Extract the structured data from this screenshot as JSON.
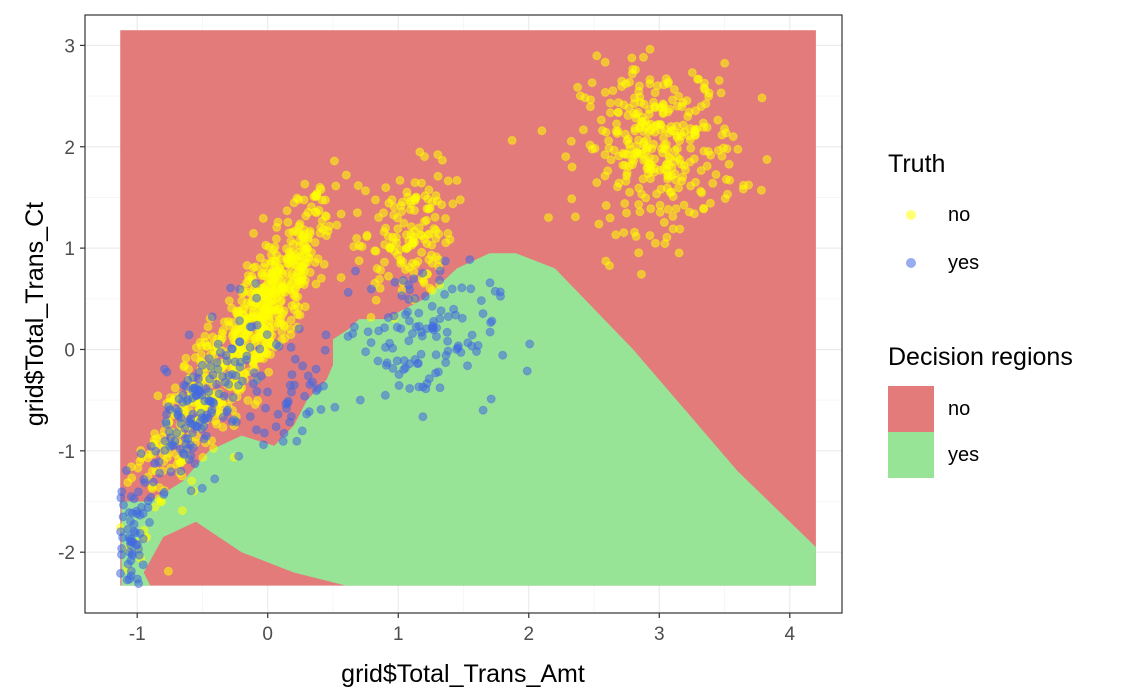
{
  "chart_data": {
    "type": "scatter",
    "xlabel": "grid$Total_Trans_Amt",
    "ylabel": "grid$Total_Trans_Ct",
    "xlim": [
      -1.4,
      4.4
    ],
    "ylim": [
      -2.6,
      3.3
    ],
    "x_ticks": [
      -1,
      0,
      1,
      2,
      3,
      4
    ],
    "y_ticks": [
      -2,
      -1,
      0,
      1,
      2,
      3
    ],
    "grid": true,
    "legend_placement": "right",
    "decision_regions": {
      "legend_title": "Decision regions",
      "extent": {
        "x": [
          -1.13,
          4.2
        ],
        "y": [
          -2.33,
          3.15
        ]
      },
      "classes": [
        {
          "name": "no",
          "color": "#e37b7b"
        },
        {
          "name": "yes",
          "color": "#97e497"
        }
      ],
      "yes_region_outline": [
        [
          -1.12,
          -2.33
        ],
        [
          -1.12,
          -1.5
        ],
        [
          -0.9,
          -1.5
        ],
        [
          -0.65,
          -1.3
        ],
        [
          -0.45,
          -1.0
        ],
        [
          -0.2,
          -0.85
        ],
        [
          0.05,
          -0.95
        ],
        [
          0.2,
          -0.75
        ],
        [
          0.3,
          -0.5
        ],
        [
          0.45,
          -0.3
        ],
        [
          0.5,
          -0.15
        ],
        [
          0.5,
          0.1
        ],
        [
          0.62,
          0.2
        ],
        [
          0.7,
          0.3
        ],
        [
          0.9,
          0.3
        ],
        [
          1.2,
          0.5
        ],
        [
          1.45,
          0.8
        ],
        [
          1.7,
          0.95
        ],
        [
          1.9,
          0.95
        ],
        [
          2.2,
          0.8
        ],
        [
          2.5,
          0.4
        ],
        [
          2.8,
          0.0
        ],
        [
          3.2,
          -0.6
        ],
        [
          3.6,
          -1.2
        ],
        [
          4.0,
          -1.7
        ],
        [
          4.2,
          -1.95
        ],
        [
          4.2,
          -2.33
        ],
        [
          0.6,
          -2.33
        ],
        [
          0.2,
          -2.2
        ],
        [
          -0.2,
          -2.0
        ],
        [
          -0.55,
          -1.7
        ],
        [
          -0.8,
          -1.85
        ],
        [
          -0.95,
          -2.2
        ],
        [
          -0.9,
          -2.33
        ]
      ]
    },
    "series": [
      {
        "name": "no",
        "color": "#ffff00",
        "clusters": [
          {
            "center": [
              0.0,
              0.4
            ],
            "spread": [
              0.25,
              0.55
            ],
            "n": 500,
            "corr": 0.85
          },
          {
            "center": [
              -0.6,
              -0.6
            ],
            "spread": [
              0.28,
              0.7
            ],
            "n": 220,
            "corr": 0.9
          },
          {
            "center": [
              1.05,
              1.1
            ],
            "spread": [
              0.18,
              0.35
            ],
            "n": 140,
            "corr": 0.3
          },
          {
            "center": [
              3.0,
              2.0
            ],
            "spread": [
              0.3,
              0.4
            ],
            "n": 320,
            "corr": 0.0
          }
        ]
      },
      {
        "name": "yes",
        "color": "#4169e1",
        "clusters": [
          {
            "center": [
              -0.5,
              -0.6
            ],
            "spread": [
              0.25,
              0.45
            ],
            "n": 170,
            "corr": 0.7
          },
          {
            "center": [
              -1.05,
              -1.9
            ],
            "spread": [
              0.07,
              0.3
            ],
            "n": 70,
            "corr": 0.3
          },
          {
            "center": [
              1.15,
              0.15
            ],
            "spread": [
              0.3,
              0.35
            ],
            "n": 120,
            "corr": 0.0
          },
          {
            "center": [
              0.2,
              -0.6
            ],
            "spread": [
              0.12,
              0.25
            ],
            "n": 35,
            "corr": 0.2
          }
        ]
      }
    ]
  },
  "legend": {
    "truth_title": "Truth",
    "truth_items": [
      {
        "label": "no",
        "color": "#ffff00"
      },
      {
        "label": "yes",
        "color": "#4169e1"
      }
    ],
    "regions_title": "Decision regions",
    "region_items": [
      {
        "label": "no",
        "color": "#e37b7b"
      },
      {
        "label": "yes",
        "color": "#97e497"
      }
    ]
  }
}
